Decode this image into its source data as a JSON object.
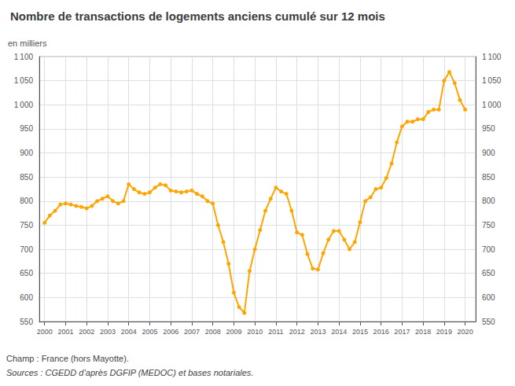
{
  "chart_data": {
    "type": "line",
    "title": "Nombre de transactions de logements anciens cumulé sur 12 mois",
    "ylabel": "en milliers",
    "annotations": [
      "Champ : France (hors Mayotte).",
      "Sources : CGEDD d’après DGFIP (MEDOC) et bases notariales."
    ],
    "color": "#FFA500",
    "marker": "circle",
    "grid": true,
    "xlim": [
      1999.75,
      2020.5
    ],
    "xticks": [
      2000,
      2001,
      2002,
      2003,
      2004,
      2005,
      2006,
      2007,
      2008,
      2009,
      2010,
      2011,
      2012,
      2013,
      2014,
      2015,
      2016,
      2017,
      2018,
      2019,
      2020
    ],
    "ylim": [
      550,
      1100
    ],
    "yticks": [
      550,
      600,
      650,
      700,
      750,
      800,
      850,
      900,
      950,
      {
        "value": 1000,
        "label": "1 000"
      },
      {
        "value": 1050,
        "label": "1 050"
      },
      {
        "value": 1100,
        "label": "1 100"
      }
    ],
    "y2lim": [
      550,
      1100
    ],
    "y2ticks": [
      550,
      600,
      650,
      700,
      750,
      800,
      850,
      900,
      950,
      {
        "value": 1000,
        "label": "1 000"
      },
      {
        "value": 1050,
        "label": "1 050"
      },
      {
        "value": 1100,
        "label": "1 100"
      }
    ],
    "x": [
      2000.0,
      2000.25,
      2000.5,
      2000.75,
      2001.0,
      2001.25,
      2001.5,
      2001.75,
      2002.0,
      2002.25,
      2002.5,
      2002.75,
      2003.0,
      2003.25,
      2003.5,
      2003.75,
      2004.0,
      2004.25,
      2004.5,
      2004.75,
      2005.0,
      2005.25,
      2005.5,
      2005.75,
      2006.0,
      2006.25,
      2006.5,
      2006.75,
      2007.0,
      2007.25,
      2007.5,
      2007.75,
      2008.0,
      2008.25,
      2008.5,
      2008.75,
      2009.0,
      2009.25,
      2009.5,
      2009.75,
      2010.0,
      2010.25,
      2010.5,
      2010.75,
      2011.0,
      2011.25,
      2011.5,
      2011.75,
      2012.0,
      2012.25,
      2012.5,
      2012.75,
      2013.0,
      2013.25,
      2013.5,
      2013.75,
      2014.0,
      2014.25,
      2014.5,
      2014.75,
      2015.0,
      2015.25,
      2015.5,
      2015.75,
      2016.0,
      2016.25,
      2016.5,
      2016.75,
      2017.0,
      2017.25,
      2017.5,
      2017.75,
      2018.0,
      2018.25,
      2018.5,
      2018.75,
      2019.0,
      2019.25,
      2019.5,
      2019.75,
      2020.0
    ],
    "values": [
      755,
      770,
      780,
      793,
      795,
      793,
      790,
      788,
      785,
      790,
      800,
      805,
      810,
      800,
      795,
      800,
      835,
      825,
      818,
      815,
      818,
      828,
      835,
      833,
      822,
      820,
      818,
      820,
      822,
      815,
      810,
      800,
      795,
      750,
      715,
      670,
      610,
      580,
      568,
      655,
      700,
      740,
      780,
      805,
      828,
      820,
      815,
      780,
      735,
      730,
      690,
      660,
      658,
      692,
      720,
      738,
      738,
      720,
      700,
      715,
      756,
      800,
      808,
      825,
      828,
      848,
      878,
      922,
      955,
      965,
      965,
      970,
      970,
      985,
      990,
      990,
      1050,
      1068,
      1045,
      1010,
      990
    ]
  }
}
